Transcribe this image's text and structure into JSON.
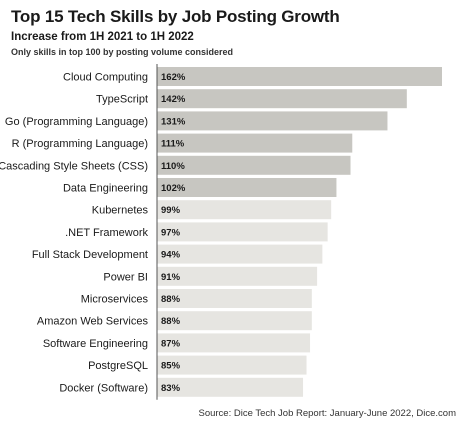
{
  "title": "Top 15 Tech Skills by Job Posting Growth",
  "subtitle": "Increase from 1H 2021 to 1H 2022",
  "note": "Only skills in top 100 by posting volume considered",
  "source": "Source: Dice Tech Job Report: January-June 2022, Dice.com",
  "colors": {
    "bar_dark": "#c7c6c1",
    "bar_light": "#e6e5e1",
    "axis": "#555555"
  },
  "chart_data": {
    "type": "bar",
    "orientation": "horizontal",
    "title": "Top 15 Tech Skills by Job Posting Growth",
    "subtitle": "Increase from 1H 2021 to 1H 2022",
    "categories": [
      "Cloud Computing",
      "TypeScript",
      "Go (Programming Language)",
      "R (Programming Language)",
      "Cascading Style Sheets (CSS)",
      "Data Engineering",
      "Kubernetes",
      ".NET Framework",
      "Full Stack Development",
      "Power BI",
      "Microservices",
      "Amazon Web Services",
      "Software Engineering",
      "PostgreSQL",
      "Docker (Software)"
    ],
    "values": [
      162,
      142,
      131,
      111,
      110,
      102,
      99,
      97,
      94,
      91,
      88,
      88,
      87,
      85,
      83
    ],
    "value_labels": [
      "162%",
      "142%",
      "131%",
      "111%",
      "110%",
      "102%",
      "99%",
      "97%",
      "94%",
      "91%",
      "88%",
      "88%",
      "87%",
      "85%",
      "83%"
    ],
    "unit": "%",
    "xlim": [
      0,
      162
    ],
    "grid": false,
    "legend": "none"
  }
}
